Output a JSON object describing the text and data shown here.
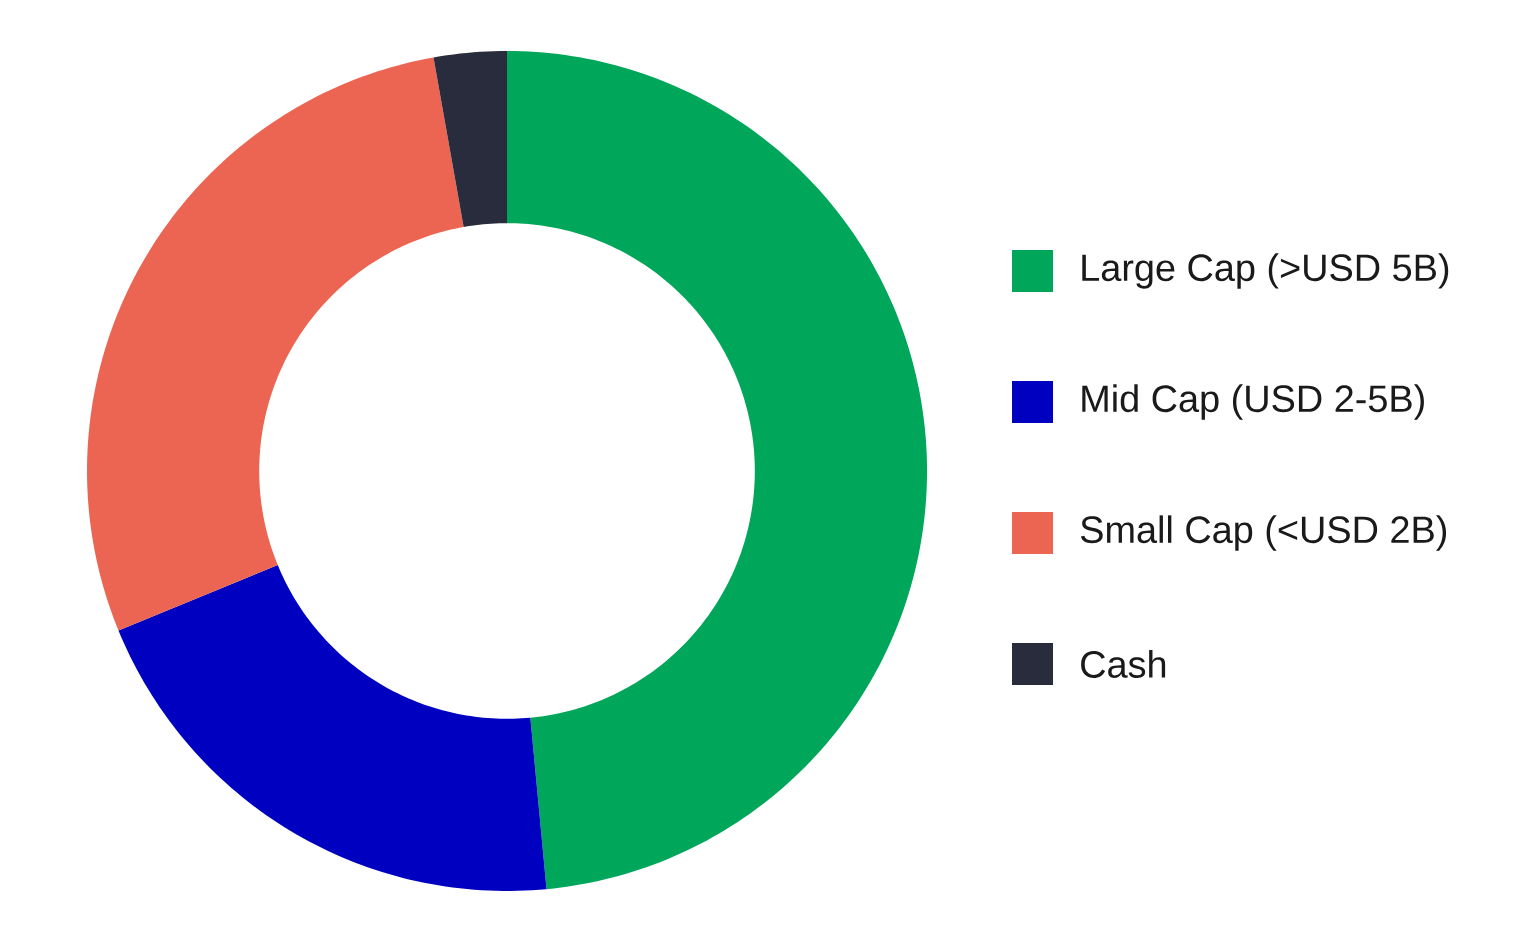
{
  "chart_data": {
    "type": "donut",
    "categories": [
      "Large Cap (>USD 5B)",
      "Mid Cap (USD 2-5B)",
      "Small Cap (<USD 2B)",
      "Cash"
    ],
    "values": [
      48.5,
      20.3,
      28.4,
      2.8
    ],
    "colors": [
      "#00a65a",
      "#0000c0",
      "#ec6553",
      "#292c3d"
    ],
    "legend": "right"
  }
}
